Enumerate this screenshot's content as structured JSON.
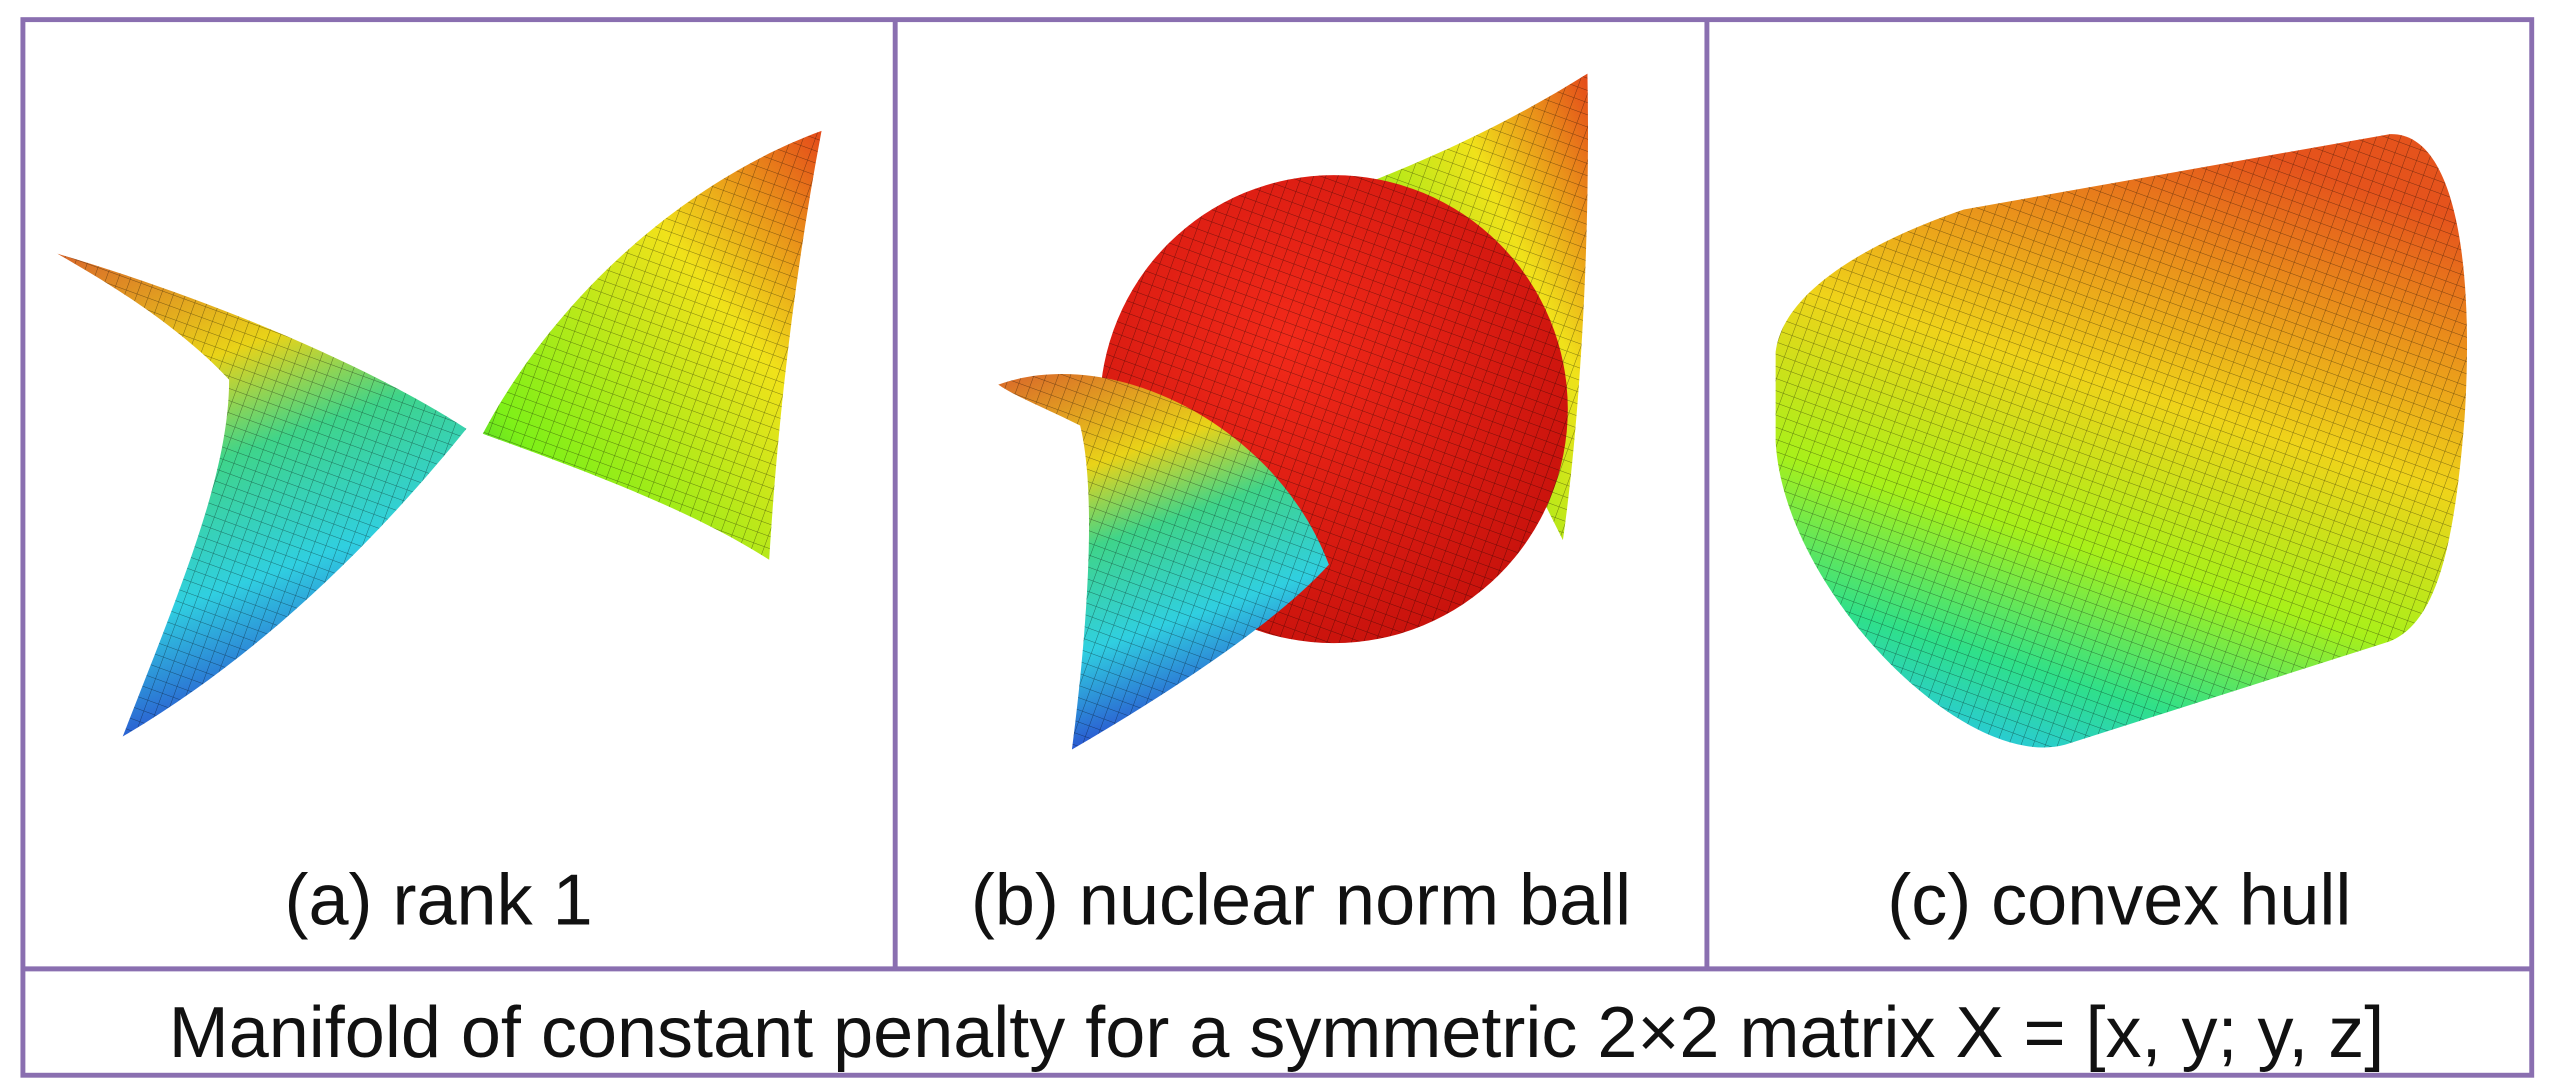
{
  "panels": [
    {
      "caption": "(a) rank 1"
    },
    {
      "caption": "(b) nuclear norm ball"
    },
    {
      "caption": "(c) convex hull"
    }
  ],
  "caption": "Manifold of constant penalty for a symmetric 2×2 matrix X = [x, y; y, z]"
}
